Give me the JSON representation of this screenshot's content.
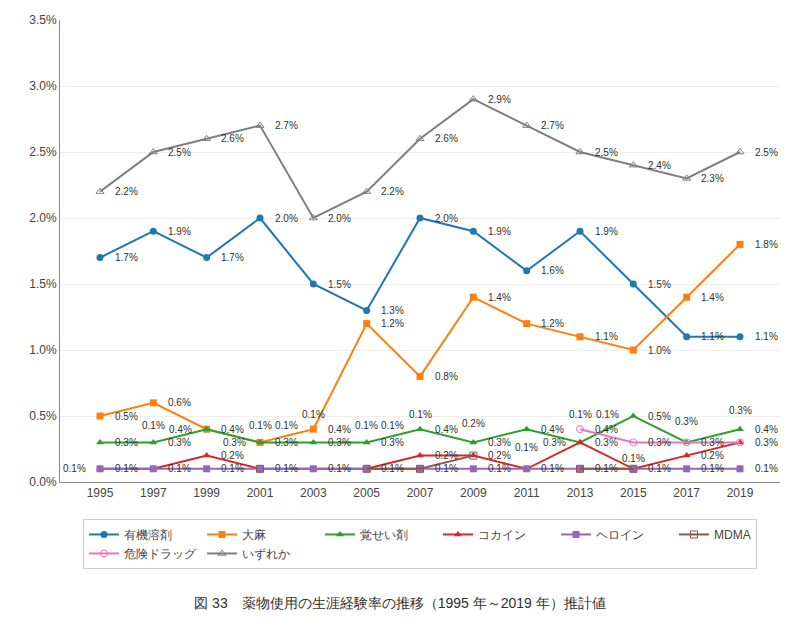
{
  "chart_data": {
    "type": "line",
    "title": "図 33　薬物使用の生涯経験率の推移（1995 年～2019 年）推計値",
    "x": [
      1995,
      1997,
      1999,
      2001,
      2003,
      2005,
      2007,
      2009,
      2011,
      2013,
      2015,
      2017,
      2019
    ],
    "xlim": [
      1993.5,
      2020.5
    ],
    "xticks": [
      1995,
      1997,
      1999,
      2001,
      2003,
      2005,
      2007,
      2009,
      2011,
      2013,
      2015,
      2017,
      2019
    ],
    "ylim": [
      0.0,
      3.5
    ],
    "yticks": [
      {
        "value": 0.0,
        "label": "0.0%"
      },
      {
        "value": 0.5,
        "label": "0.5%"
      },
      {
        "value": 1.0,
        "label": "1.0%"
      },
      {
        "value": 1.5,
        "label": "1.5%"
      },
      {
        "value": 2.0,
        "label": "2.0%"
      },
      {
        "value": 2.5,
        "label": "2.5%"
      },
      {
        "value": 3.0,
        "label": "3.0%"
      },
      {
        "value": 3.5,
        "label": "3.5%"
      }
    ],
    "grid": "y",
    "legend": "bottom",
    "data_labels": true,
    "series": [
      {
        "name": "有機溶剤",
        "marker": "circle",
        "values": [
          1.7,
          1.9,
          1.7,
          2.0,
          1.5,
          1.3,
          2.0,
          1.9,
          1.6,
          1.9,
          1.5,
          1.1,
          1.1
        ],
        "value_labels": [
          "1.7%",
          "1.9%",
          "1.7%",
          "2.0%",
          "1.5%",
          "1.3%",
          "2.0%",
          "1.9%",
          "1.6%",
          "1.9%",
          "1.5%",
          "1.1%",
          "1.1%"
        ]
      },
      {
        "name": "大麻",
        "marker": "square",
        "values": [
          0.5,
          0.6,
          0.4,
          0.3,
          0.4,
          1.2,
          0.8,
          1.4,
          1.2,
          1.1,
          1.0,
          1.4,
          1.8
        ],
        "value_labels": [
          "0.5%",
          "0.6%",
          "0.4%",
          "0.3%",
          "0.4%",
          "1.2%",
          "0.8%",
          "1.4%",
          "1.2%",
          "1.1%",
          "1.0%",
          "1.4%",
          "1.8%"
        ]
      },
      {
        "name": "覚せい剤",
        "marker": "triangle-up",
        "values": [
          0.3,
          0.3,
          0.4,
          0.3,
          0.3,
          0.3,
          0.4,
          0.3,
          0.4,
          0.3,
          0.5,
          0.3,
          0.4
        ],
        "value_labels": [
          "0.3%",
          "0.3%",
          "0.4%",
          "0.3%",
          "0.3%",
          "0.3%",
          "0.4%",
          "0.3%",
          "0.4%",
          "0.3%",
          "0.5%",
          "0.3%",
          "0.4%"
        ]
      },
      {
        "name": "コカイン",
        "marker": "triangle-up",
        "values": [
          0.1,
          0.1,
          0.2,
          0.1,
          0.1,
          0.1,
          0.2,
          0.2,
          0.1,
          0.3,
          0.1,
          0.2,
          0.3
        ],
        "value_labels": [
          "0.1%",
          "0.1%",
          "0.2%",
          "0.1%",
          "0.1%",
          "0.1%",
          "0.2%",
          "0.2%",
          "0.1%",
          "0.3%",
          "0.1%",
          "0.2%",
          "0.3%"
        ]
      },
      {
        "name": "ヘロイン",
        "marker": "square",
        "values": [
          0.1,
          0.1,
          0.1,
          0.1,
          0.1,
          0.1,
          0.1,
          0.1,
          0.1,
          0.1,
          0.1,
          0.1,
          0.1
        ],
        "value_labels": [
          "0.1%",
          "0.1%",
          "0.1%",
          "0.1%",
          "0.1%",
          "0.1%",
          "0.1%",
          "0.1%",
          "0.1%",
          "0.1%",
          "0.1%",
          "0.1%",
          "0.1%"
        ]
      },
      {
        "name": "MDMA",
        "marker": "square-open",
        "values": [
          null,
          null,
          null,
          0.1,
          null,
          0.1,
          0.1,
          0.2,
          null,
          0.1,
          0.1,
          null,
          null
        ],
        "value_labels": [
          null,
          null,
          null,
          "0.1%",
          null,
          "0.1%",
          "0.1%",
          "0.2%",
          null,
          "0.1%",
          "0.1%",
          null,
          null
        ]
      },
      {
        "name": "危険ドラッグ",
        "marker": "circle-open",
        "values": [
          null,
          null,
          null,
          null,
          null,
          null,
          null,
          null,
          null,
          0.4,
          0.3,
          0.3,
          0.3
        ],
        "value_labels": [
          null,
          null,
          null,
          null,
          null,
          null,
          null,
          null,
          null,
          "0.4%",
          "0.3%",
          "0.3%",
          "0.3%"
        ]
      },
      {
        "name": "いずれか",
        "marker": "triangle-up-open",
        "values": [
          2.2,
          2.5,
          2.6,
          2.7,
          2.0,
          2.2,
          2.6,
          2.9,
          2.7,
          2.5,
          2.4,
          2.3,
          2.5
        ],
        "value_labels": [
          "2.2%",
          "2.5%",
          "2.6%",
          "2.7%",
          "2.0%",
          "2.2%",
          "2.6%",
          "2.9%",
          "2.7%",
          "2.5%",
          "2.4%",
          "2.3%",
          "2.5%"
        ]
      }
    ]
  }
}
